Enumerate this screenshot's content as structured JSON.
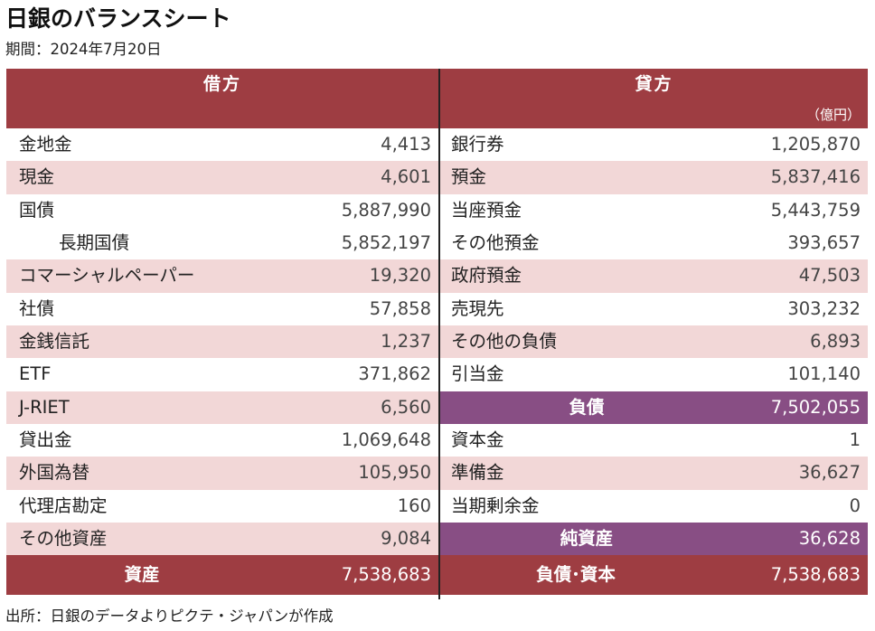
{
  "title": "日銀のバランスシート",
  "subtitle": "期間：2024年7月20日",
  "source": "出所：日銀のデータよりピクテ・ジャパンが作成",
  "debit": {
    "header": "借方",
    "rows": [
      {
        "label": "金地金",
        "value": "4,413"
      },
      {
        "label": "現金",
        "value": "4,601"
      },
      {
        "label": "国債",
        "value": "5,887,990"
      },
      {
        "label": "長期国債",
        "value": "5,852,197"
      },
      {
        "label": "コマーシャルペーパー",
        "value": "19,320"
      },
      {
        "label": "社債",
        "value": "57,858"
      },
      {
        "label": "金銭信託",
        "value": "1,237"
      },
      {
        "label": "ETF",
        "value": "371,862"
      },
      {
        "label": "J-RIET",
        "value": "6,560"
      },
      {
        "label": "貸出金",
        "value": "1,069,648"
      },
      {
        "label": "外国為替",
        "value": "105,950"
      },
      {
        "label": "代理店勘定",
        "value": "160"
      },
      {
        "label": "その他資産",
        "value": "9,084"
      }
    ],
    "total": {
      "label": "資産",
      "value": "7,538,683"
    }
  },
  "credit": {
    "header": "貸方",
    "unit": "（億円）",
    "rows": [
      {
        "label": "銀行券",
        "value": "1,205,870"
      },
      {
        "label": "預金",
        "value": "5,837,416"
      },
      {
        "label": "当座預金",
        "value": "5,443,759"
      },
      {
        "label": "その他預金",
        "value": "393,657"
      },
      {
        "label": "政府預金",
        "value": "47,503"
      },
      {
        "label": "売現先",
        "value": "303,232"
      },
      {
        "label": "その他の負債",
        "value": "6,893"
      },
      {
        "label": "引当金",
        "value": "101,140"
      },
      {
        "label": "負債",
        "value": "7,502,055"
      },
      {
        "label": "資本金",
        "value": "1"
      },
      {
        "label": "準備金",
        "value": "36,627"
      },
      {
        "label": "当期剰余金",
        "value": "0"
      },
      {
        "label": "純資産",
        "value": "36,628"
      }
    ],
    "total": {
      "label": "負債･資本",
      "value": "7,538,683"
    }
  },
  "colors": {
    "header_bg": "#9e3d42",
    "subtotal_bg": "#884e84",
    "shaded_row_bg": "#f2d7d7"
  }
}
